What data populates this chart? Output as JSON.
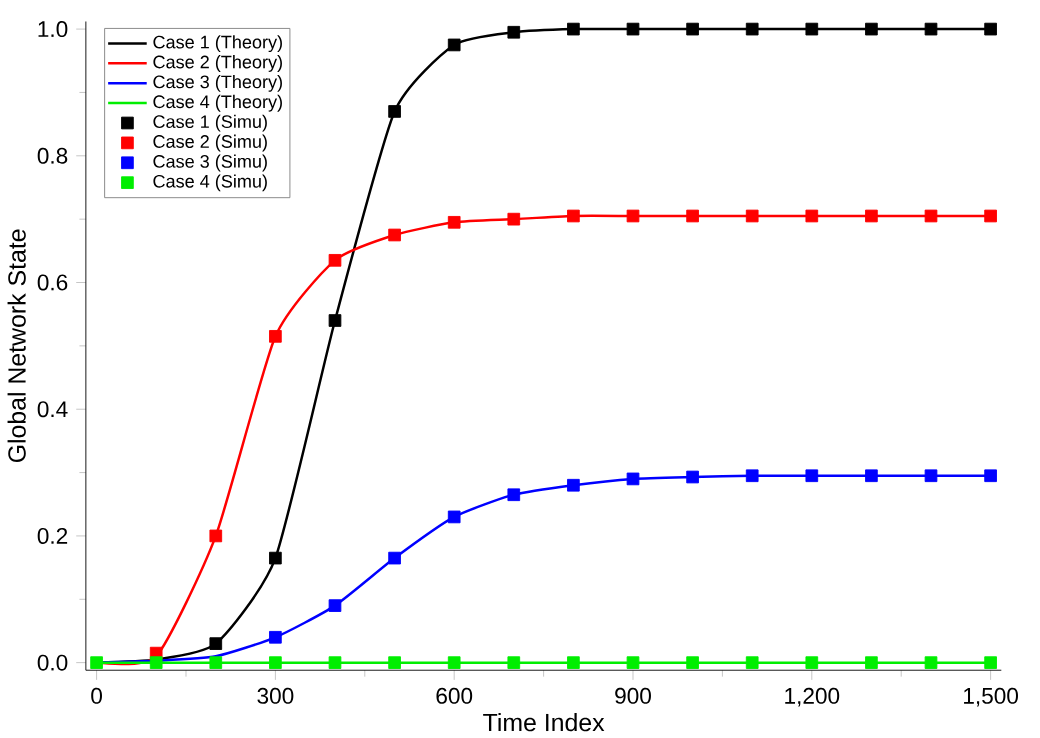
{
  "chart_data": {
    "type": "line",
    "xlabel": "Time Index",
    "ylabel": "Global  Network State",
    "x": [
      0,
      100,
      200,
      300,
      400,
      500,
      600,
      700,
      800,
      900,
      1000,
      1100,
      1200,
      1300,
      1400,
      1500
    ],
    "xlim": [
      0,
      1500
    ],
    "xticks": [
      0,
      300,
      600,
      900,
      {
        "value": 1200,
        "label": "1,200"
      },
      {
        "value": 1500,
        "label": "1,500"
      }
    ],
    "ylim": [
      0,
      1.0
    ],
    "yticks": [
      {
        "value": 0,
        "label": "0.0"
      },
      {
        "value": 0.2,
        "label": "0.2"
      },
      {
        "value": 0.4,
        "label": "0.4"
      },
      {
        "value": 0.6,
        "label": "0.6"
      },
      {
        "value": 0.8,
        "label": "0.8"
      },
      {
        "value": 1.0,
        "label": "1.0"
      }
    ],
    "grid": false,
    "legend": "top left",
    "series": [
      {
        "name": "Case 1 (Theory)",
        "color": "#000000",
        "marker": "none",
        "values": [
          0,
          0.005,
          0.03,
          0.165,
          0.54,
          0.87,
          0.975,
          0.995,
          1.0,
          1.0,
          1.0,
          1.0,
          1.0,
          1.0,
          1.0,
          1.0
        ]
      },
      {
        "name": "Case 2 (Theory)",
        "color": "#ff0000",
        "marker": "none",
        "values": [
          0,
          0.01,
          0.2,
          0.515,
          0.635,
          0.675,
          0.695,
          0.7,
          0.705,
          0.705,
          0.705,
          0.705,
          0.705,
          0.705,
          0.705,
          0.705
        ]
      },
      {
        "name": "Case 3 (Theory)",
        "color": "#0000ff",
        "marker": "none",
        "values": [
          0,
          0.003,
          0.01,
          0.04,
          0.09,
          0.165,
          0.23,
          0.265,
          0.28,
          0.29,
          0.293,
          0.295,
          0.295,
          0.295,
          0.295,
          0.295
        ]
      },
      {
        "name": "Case 4 (Theory)",
        "color": "#00ee00",
        "marker": "none",
        "values": [
          0,
          0,
          0,
          0,
          0,
          0,
          0,
          0,
          0,
          0,
          0,
          0,
          0,
          0,
          0,
          0
        ]
      },
      {
        "name": "Case 1 (Simu)",
        "type": "scatter",
        "color": "#000000",
        "marker": "square",
        "values": [
          null,
          null,
          0.03,
          0.165,
          0.54,
          0.87,
          0.975,
          0.995,
          1.0,
          1.0,
          1.0,
          1.0,
          1.0,
          1.0,
          1.0,
          1.0
        ]
      },
      {
        "name": "Case 2 (Simu)",
        "type": "scatter",
        "color": "#ff0000",
        "marker": "square",
        "values": [
          null,
          0.015,
          0.2,
          0.515,
          0.635,
          0.675,
          0.695,
          0.7,
          0.705,
          0.705,
          0.705,
          0.705,
          0.705,
          0.705,
          0.705,
          0.705
        ]
      },
      {
        "name": "Case 3 (Simu)",
        "type": "scatter",
        "color": "#0000ff",
        "marker": "square",
        "values": [
          null,
          null,
          null,
          0.04,
          0.09,
          0.165,
          0.23,
          0.265,
          0.28,
          0.29,
          0.293,
          0.295,
          0.295,
          0.295,
          0.295,
          0.295
        ]
      },
      {
        "name": "Case 4 (Simu)",
        "type": "scatter",
        "color": "#00ee00",
        "marker": "square",
        "values": [
          0,
          0,
          0,
          0,
          0,
          0,
          0,
          0,
          0,
          0,
          0,
          0,
          0,
          0,
          0,
          0
        ]
      }
    ]
  }
}
